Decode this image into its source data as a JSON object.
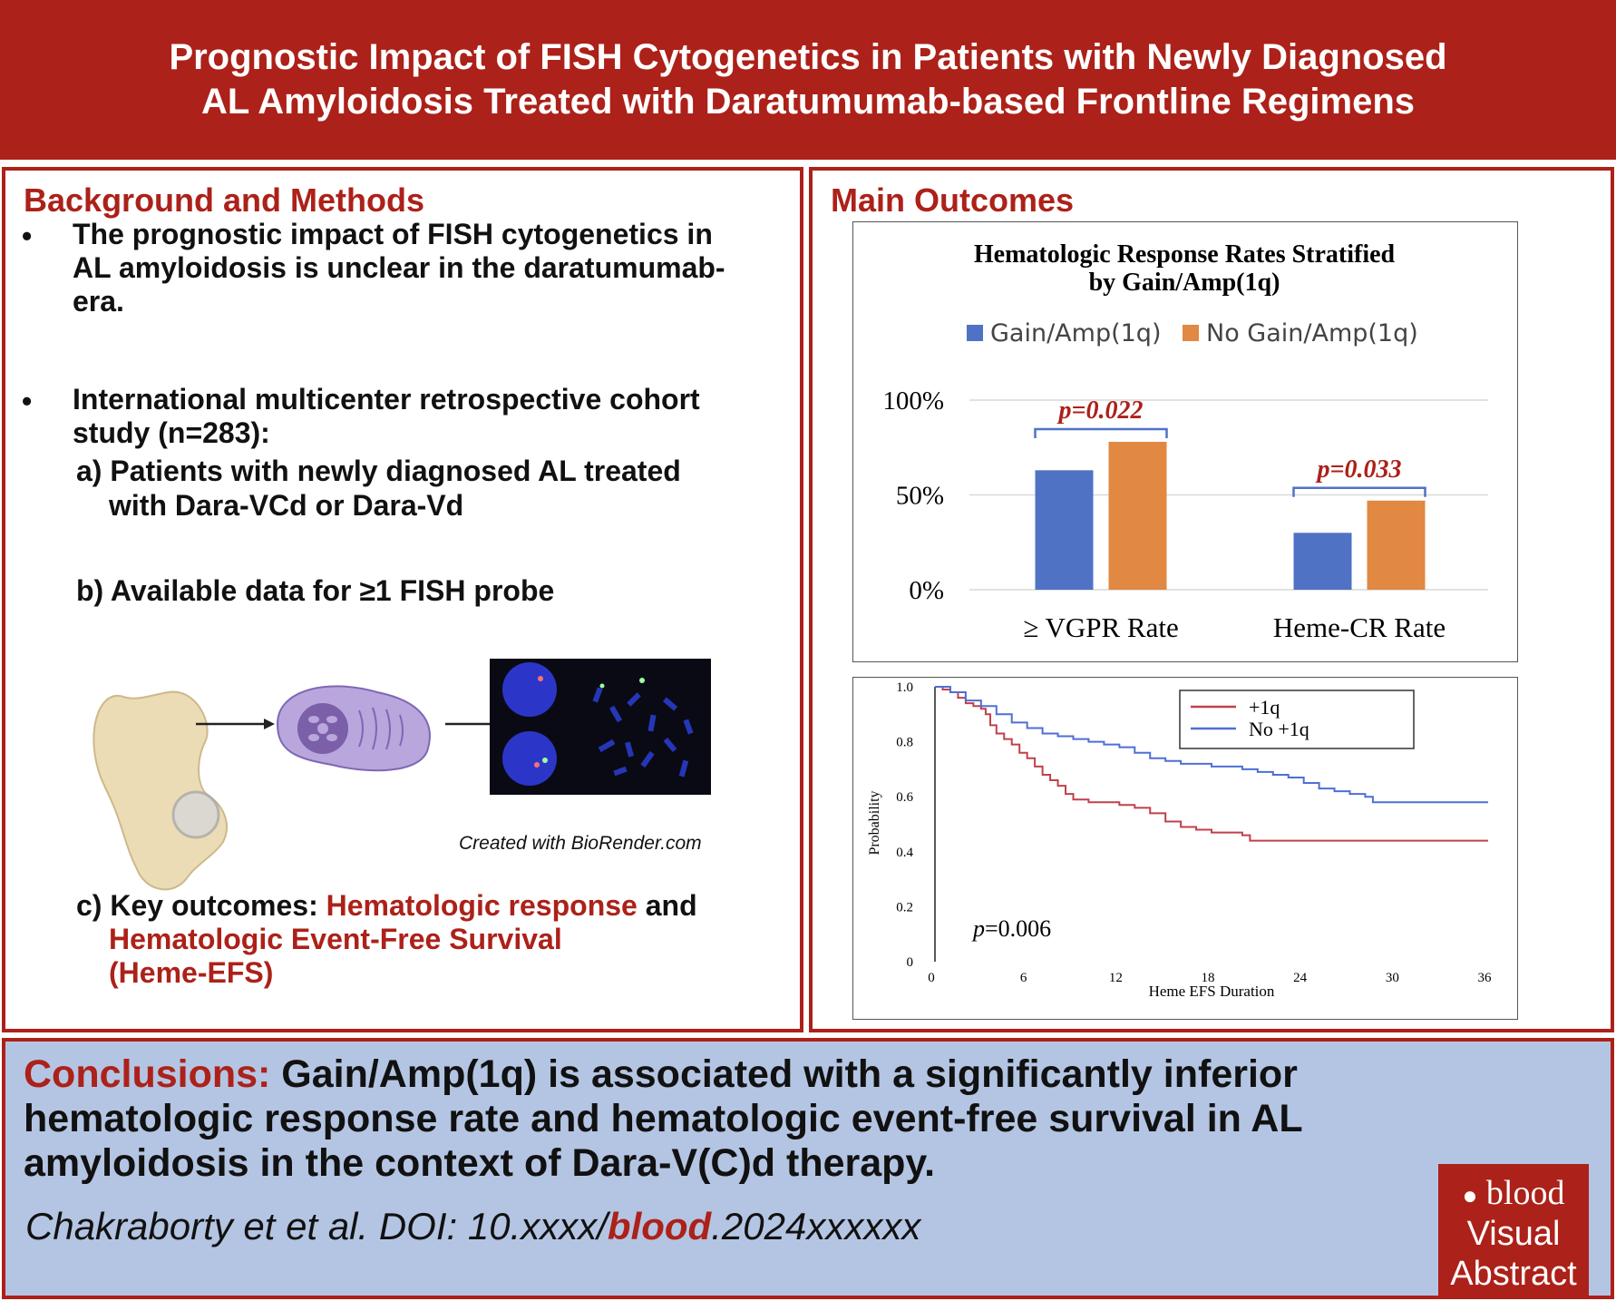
{
  "title": {
    "line1": "Prognostic Impact of FISH Cytogenetics in Patients with Newly Diagnosed",
    "line2": "AL Amyloidosis Treated with Daratumumab-based Frontline Regimens"
  },
  "background": {
    "heading": "Background and Methods",
    "bullet_symbol": "•",
    "bullet1": {
      "line1": "The prognostic impact of FISH cytogenetics in",
      "line2": "AL amyloidosis is unclear in the daratumumab-",
      "line3": "era."
    },
    "bullet2": {
      "line1": "International multicenter retrospective cohort",
      "line2": "study (n=283):"
    },
    "item_a": {
      "line1": "a) Patients with newly diagnosed AL treated",
      "line2": "with Dara-VCd or Dara-Vd"
    },
    "item_b": "b) Available data for ≥1 FISH probe",
    "credit": "Created with BioRender.com",
    "item_c": {
      "prefix": "c) Key outcomes: ",
      "hl1": "Hematologic response",
      "mid": " and",
      "hl2_line1": "Hematologic Event-Free Survival",
      "hl2_line2": "(Heme-EFS)"
    },
    "colors": {
      "accent": "#ac2119"
    }
  },
  "outcomes": {
    "heading": "Main Outcomes"
  },
  "chart_data": [
    {
      "type": "bar",
      "title_line1": "Hematologic Response Rates Stratified",
      "title_line2": "by Gain/Amp(1q)",
      "categories": [
        "≥ VGPR Rate",
        "Heme-CR Rate"
      ],
      "series": [
        {
          "name": "Gain/Amp(1q)",
          "values": [
            63,
            30
          ],
          "color": "#4f72c4"
        },
        {
          "name": "No Gain/Amp(1q)",
          "values": [
            78,
            47
          ],
          "color": "#e18843"
        }
      ],
      "yticks": [
        "0%",
        "50%",
        "100%"
      ],
      "ylim": [
        0,
        100
      ],
      "annotations": [
        {
          "category": 0,
          "text": "p=0.022"
        },
        {
          "category": 1,
          "text": "p=0.033"
        }
      ],
      "legend": "top",
      "grid": true
    },
    {
      "type": "line",
      "xlabel": "Heme EFS Duration",
      "ylabel": "Probability",
      "xticks": [
        "0",
        "6",
        "12",
        "18",
        "24",
        "30",
        "36"
      ],
      "yticks": [
        "0",
        "0.2",
        "0.4",
        "0.6",
        "0.8",
        "1.0"
      ],
      "xlim": [
        0,
        36
      ],
      "ylim": [
        0,
        1
      ],
      "annotation": {
        "italic": "p",
        "rest": "=0.006"
      },
      "legend": "top-right",
      "series": [
        {
          "name": "+1q",
          "color": "#c0414b",
          "points": [
            [
              0,
              1.0
            ],
            [
              0.5,
              0.99
            ],
            [
              1,
              0.98
            ],
            [
              1.5,
              0.96
            ],
            [
              2,
              0.94
            ],
            [
              2.5,
              0.93
            ],
            [
              3,
              0.92
            ],
            [
              3.3,
              0.9
            ],
            [
              3.6,
              0.86
            ],
            [
              4,
              0.83
            ],
            [
              4.5,
              0.81
            ],
            [
              5,
              0.79
            ],
            [
              5.5,
              0.76
            ],
            [
              6,
              0.74
            ],
            [
              6.5,
              0.71
            ],
            [
              7,
              0.68
            ],
            [
              7.5,
              0.66
            ],
            [
              8,
              0.64
            ],
            [
              8.5,
              0.61
            ],
            [
              9,
              0.59
            ],
            [
              10,
              0.58
            ],
            [
              12,
              0.57
            ],
            [
              13,
              0.56
            ],
            [
              14,
              0.54
            ],
            [
              15,
              0.51
            ],
            [
              16,
              0.49
            ],
            [
              17,
              0.48
            ],
            [
              18,
              0.47
            ],
            [
              20,
              0.46
            ],
            [
              20.5,
              0.44
            ],
            [
              36,
              0.44
            ]
          ]
        },
        {
          "name": "No +1q",
          "color": "#4e6fd6",
          "points": [
            [
              0,
              1.0
            ],
            [
              1,
              0.98
            ],
            [
              2,
              0.95
            ],
            [
              3,
              0.93
            ],
            [
              4,
              0.9
            ],
            [
              5,
              0.87
            ],
            [
              6,
              0.85
            ],
            [
              7,
              0.83
            ],
            [
              8,
              0.82
            ],
            [
              9,
              0.81
            ],
            [
              10,
              0.8
            ],
            [
              11,
              0.79
            ],
            [
              12,
              0.78
            ],
            [
              13,
              0.76
            ],
            [
              14,
              0.74
            ],
            [
              15,
              0.73
            ],
            [
              16,
              0.72
            ],
            [
              18,
              0.71
            ],
            [
              20,
              0.7
            ],
            [
              21,
              0.69
            ],
            [
              22,
              0.68
            ],
            [
              23,
              0.67
            ],
            [
              24,
              0.65
            ],
            [
              25,
              0.63
            ],
            [
              26,
              0.62
            ],
            [
              27,
              0.61
            ],
            [
              28,
              0.6
            ],
            [
              28.5,
              0.58
            ],
            [
              36,
              0.58
            ]
          ]
        }
      ]
    }
  ],
  "conclusions": {
    "label": "Conclusions:",
    "line1": " Gain/Amp(1q) is associated with a significantly inferior",
    "line2": "hematologic response rate and hematologic event-free survival in AL",
    "line3": "amyloidosis in the context of Dara-V(C)d therapy.",
    "citation_prefix": "Chakraborty et et al. DOI: 10.xxxx/",
    "citation_journal": "blood",
    "citation_suffix": ".2024xxxxxx"
  },
  "badge": {
    "logo": "blood",
    "line1": "Visual",
    "line2": "Abstract"
  }
}
